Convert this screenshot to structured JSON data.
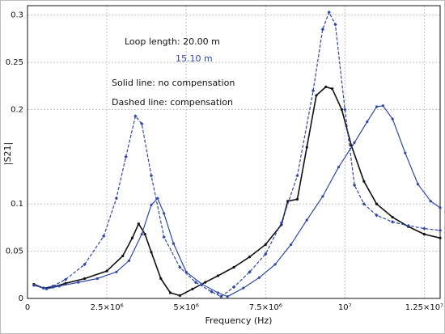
{
  "chart_data": {
    "type": "line",
    "title": "",
    "xlabel": "Frequency (Hz)",
    "ylabel": "|S21|",
    "xlim": [
      0,
      13000000
    ],
    "ylim": [
      0,
      0.31
    ],
    "x_ticks": [
      {
        "value": 0,
        "label": "0"
      },
      {
        "value": 2500000,
        "label": "2.5×10⁶"
      },
      {
        "value": 5000000,
        "label": "5×10⁶"
      },
      {
        "value": 7500000,
        "label": "7.5×10⁶"
      },
      {
        "value": 10000000,
        "label": "10⁷"
      },
      {
        "value": 12500000,
        "label": "1.25×10⁷"
      }
    ],
    "y_ticks": [
      {
        "value": 0,
        "label": "0"
      },
      {
        "value": 0.05,
        "label": "0.05"
      },
      {
        "value": 0.1,
        "label": "0.1"
      },
      {
        "value": 0.2,
        "label": "0.2"
      },
      {
        "value": 0.25,
        "label": "0.25"
      },
      {
        "value": 0.3,
        "label": "0.3"
      }
    ],
    "grid": true,
    "annotations": {
      "loop_length": "Loop length: 20.00 m",
      "loop_length_2": "15.10 m",
      "solid_note": "Solid line: no compensation",
      "dashed_note": "Dashed line: compensation"
    },
    "series": [
      {
        "color": "#111111",
        "dashed": false,
        "marker": "dot",
        "x": [
          200000,
          500000,
          800000,
          1200000,
          1800000,
          2500000,
          3000000,
          3300000,
          3500000,
          3700000,
          3900000,
          4200000,
          4500000,
          4800000,
          5200000,
          5600000,
          6000000,
          6500000,
          7000000,
          7500000,
          8000000,
          8200000,
          8500000,
          8800000,
          9100000,
          9400000,
          9600000,
          9900000,
          10200000,
          10600000,
          11000000,
          11500000,
          12000000,
          12500000,
          13000000
        ],
        "y": [
          0.015,
          0.011,
          0.012,
          0.016,
          0.021,
          0.029,
          0.045,
          0.064,
          0.079,
          0.068,
          0.049,
          0.021,
          0.006,
          0.003,
          0.01,
          0.017,
          0.024,
          0.033,
          0.044,
          0.057,
          0.078,
          0.103,
          0.105,
          0.16,
          0.215,
          0.224,
          0.222,
          0.2,
          0.162,
          0.124,
          0.1,
          0.086,
          0.076,
          0.068,
          0.064
        ]
      },
      {
        "color": "#2f47a6",
        "dashed": true,
        "marker": "diamond",
        "x": [
          200000,
          500000,
          800000,
          1200000,
          1800000,
          2400000,
          2800000,
          3100000,
          3400000,
          3600000,
          3900000,
          4300000,
          4800000,
          5300000,
          5800000,
          6100000,
          6500000,
          7000000,
          7500000,
          8000000,
          8500000,
          9000000,
          9300000,
          9500000,
          9700000,
          10000000,
          10300000,
          10600000,
          11000000,
          11500000,
          12000000,
          12500000,
          13000000
        ],
        "y": [
          0.014,
          0.011,
          0.013,
          0.02,
          0.036,
          0.066,
          0.106,
          0.15,
          0.193,
          0.185,
          0.13,
          0.065,
          0.033,
          0.017,
          0.007,
          0.002,
          0.012,
          0.028,
          0.047,
          0.08,
          0.13,
          0.22,
          0.285,
          0.303,
          0.29,
          0.2,
          0.12,
          0.1,
          0.088,
          0.081,
          0.077,
          0.074,
          0.072
        ]
      },
      {
        "color": "#2f47a6",
        "dashed": false,
        "marker": "dot",
        "x": [
          200000,
          600000,
          1000000,
          1600000,
          2200000,
          2800000,
          3200000,
          3600000,
          3900000,
          4100000,
          4300000,
          4600000,
          5000000,
          5500000,
          6000000,
          6300000,
          6800000,
          7300000,
          7800000,
          8300000,
          8800000,
          9300000,
          9800000,
          10300000,
          10700000,
          11000000,
          11200000,
          11500000,
          11900000,
          12300000,
          12700000,
          13000000
        ],
        "y": [
          0.014,
          0.01,
          0.013,
          0.017,
          0.021,
          0.028,
          0.04,
          0.068,
          0.099,
          0.106,
          0.09,
          0.058,
          0.028,
          0.015,
          0.006,
          0.002,
          0.011,
          0.022,
          0.036,
          0.057,
          0.083,
          0.108,
          0.139,
          0.165,
          0.187,
          0.203,
          0.204,
          0.19,
          0.154,
          0.121,
          0.103,
          0.096
        ]
      }
    ]
  }
}
